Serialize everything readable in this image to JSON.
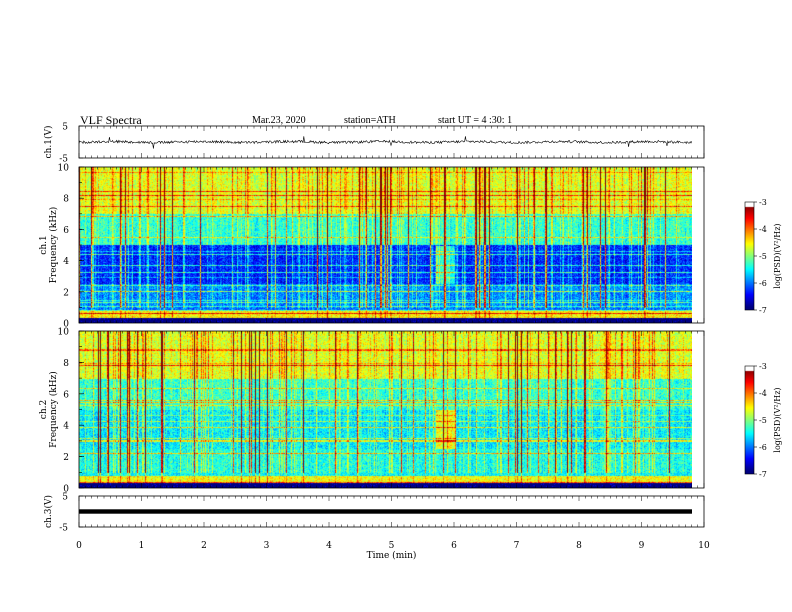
{
  "header": {
    "title": "VLF Spectra",
    "date": "Mar.23, 2020",
    "station": "station=ATH",
    "start": "start UT = 4 :30: 1"
  },
  "chart_data": [
    {
      "type": "line",
      "panel": "ch1-waveform",
      "ylabel": "ch.1(V)",
      "yticks": [
        "5",
        "-5"
      ],
      "ylim": [
        -5,
        5
      ],
      "xlim": [
        0,
        10
      ],
      "approx_level": 0,
      "color": "#000000"
    },
    {
      "type": "heatmap",
      "panel": "ch1-spectrogram",
      "ylabel_top": "ch.1",
      "ylabel": "Frequency (kHz)",
      "yticks": [
        0,
        2,
        4,
        6,
        8,
        10
      ],
      "ylim": [
        0,
        10
      ],
      "xlim": [
        0,
        9.8
      ],
      "colorbar": {
        "label": "log(PSD)(V²/Hz)",
        "ticks": [
          "-3",
          "-4",
          "-5",
          "-6",
          "-7"
        ],
        "range": [
          -7,
          -3
        ]
      }
    },
    {
      "type": "heatmap",
      "panel": "ch2-spectrogram",
      "ylabel_top": "ch.2",
      "ylabel": "Frequency (kHz)",
      "yticks": [
        0,
        2,
        4,
        6,
        8,
        10
      ],
      "ylim": [
        0,
        10
      ],
      "xlim": [
        0,
        9.8
      ],
      "colorbar": {
        "label": "log(PSD)(V²/Hz)",
        "ticks": [
          "-3",
          "-4",
          "-5",
          "-6",
          "-7"
        ],
        "range": [
          -7,
          -3
        ]
      }
    },
    {
      "type": "line",
      "panel": "ch3-waveform",
      "ylabel": "ch.3(V)",
      "yticks": [
        "5",
        "-5"
      ],
      "ylim": [
        -5,
        5
      ],
      "xlim": [
        0,
        10
      ],
      "approx_level": 0,
      "color": "#000000"
    }
  ],
  "xaxis": {
    "label": "Time (min)",
    "ticks": [
      "0",
      "1",
      "2",
      "3",
      "4",
      "5",
      "6",
      "7",
      "8",
      "9",
      "10"
    ],
    "range": [
      0,
      10
    ]
  }
}
